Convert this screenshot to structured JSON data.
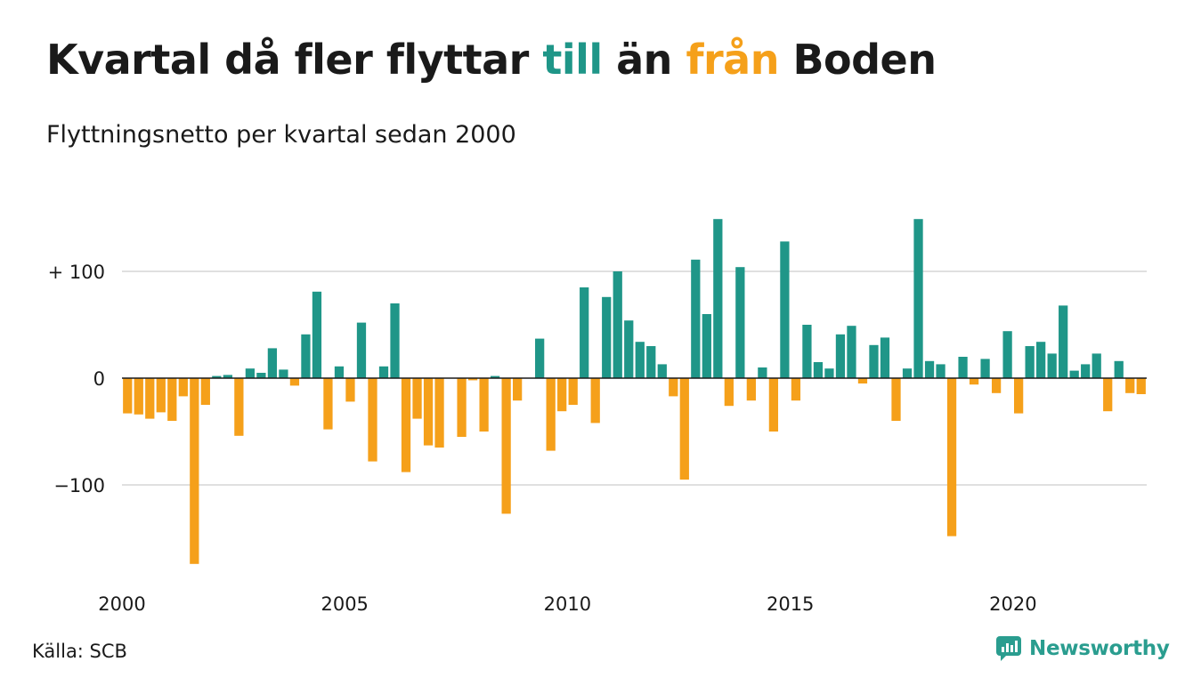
{
  "header": {
    "title_part1": "Kvartal då fler flyttar ",
    "title_till": "till",
    "title_part2": " än ",
    "title_fran": "från",
    "title_part3": " Boden",
    "subtitle": "Flyttningsnetto per kvartal sedan 2000"
  },
  "footer": {
    "source": "Källa: SCB",
    "brand": "Newsworthy"
  },
  "colors": {
    "positive": "#1f9688",
    "negative": "#f5a01a",
    "brand": "#2a9d8f"
  },
  "chart_data": {
    "type": "bar",
    "title": "Kvartal då fler flyttar till än från Boden",
    "subtitle": "Flyttningsnetto per kvartal sedan 2000",
    "xlabel": "",
    "ylabel": "",
    "ylim": [
      -180,
      150
    ],
    "y_ticks": [
      {
        "value": 100,
        "label": "+ 100"
      },
      {
        "value": 0,
        "label": "0"
      },
      {
        "value": -100,
        "label": "−100"
      }
    ],
    "x_ticks": [
      {
        "year": 2000,
        "label": "2000"
      },
      {
        "year": 2005,
        "label": "2005"
      },
      {
        "year": 2010,
        "label": "2010"
      },
      {
        "year": 2015,
        "label": "2015"
      },
      {
        "year": 2020,
        "label": "2020"
      }
    ],
    "start_year": 2000,
    "grid": true,
    "series": [
      {
        "values": [
          -33,
          -34,
          -38,
          -32,
          -40,
          -17,
          -174,
          -25,
          2,
          3,
          -54,
          9,
          5,
          28,
          8,
          -7,
          41,
          81,
          -48,
          11,
          -22,
          52,
          -78,
          11,
          70,
          -88,
          -38,
          -63,
          -65,
          0,
          -55,
          -2,
          -50,
          2,
          -127,
          -21,
          0,
          37,
          -68,
          -31,
          -25,
          85,
          -42,
          76,
          100,
          54,
          34,
          30,
          13,
          -17,
          -95,
          111,
          60,
          149,
          -26,
          104,
          -21,
          10,
          -50,
          128,
          -21,
          50,
          15,
          9,
          41,
          49,
          -5,
          31,
          38,
          -40,
          9,
          149,
          16,
          13,
          -148,
          20,
          -6,
          18,
          -14,
          44,
          -33,
          30,
          34,
          23,
          68,
          7,
          13,
          23,
          -31,
          16,
          -14,
          -15
        ]
      }
    ]
  }
}
